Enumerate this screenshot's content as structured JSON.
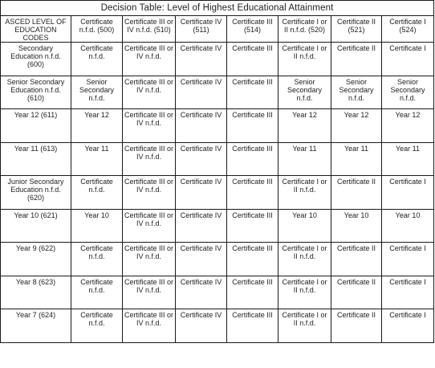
{
  "title": "Decision Table: Level of Highest Educational Attainment",
  "corner_header": "ASCED LEVEL OF EDUCATION CODES",
  "columns": [
    "Certificate n.f.d. (500)",
    "Certificate III or IV n.f.d. (510)",
    "Certificate IV (511)",
    "Certificate III (514)",
    "Certificate I or II n.f.d. (520)",
    "Certificate II (521)",
    "Certificate I (524)"
  ],
  "rows": [
    {
      "label": "Secondary Education n.f.d. (600)",
      "cells": [
        "Certificate n.f.d.",
        "Certificate III or IV n.f.d.",
        "Certificate IV",
        "Certificate III",
        "Certificate I or II n.f.d.",
        "Certificate II",
        "Certificate I"
      ]
    },
    {
      "label": "Senior Secondary Education n.f.d. (610)",
      "cells": [
        "Senior Secondary n.f.d.",
        "Certificate III or IV n.f.d.",
        "Certificate IV",
        "Certificate III",
        "Senior Secondary n.f.d.",
        "Senior Secondary n.f.d.",
        "Senior Secondary n.f.d."
      ]
    },
    {
      "label": "Year 12 (611)",
      "cells": [
        "Year 12",
        "Certificate III or IV n.f.d.",
        "Certificate IV",
        "Certificate III",
        "Year 12",
        "Year 12",
        "Year 12"
      ]
    },
    {
      "label": "Year 11 (613)",
      "cells": [
        "Year 11",
        "Certificate III or IV n.f.d.",
        "Certificate IV",
        "Certificate III",
        "Year 11",
        "Year 11",
        "Year 11"
      ]
    },
    {
      "label": "Junior Secondary Education n.f.d. (620)",
      "cells": [
        "Certificate n.f.d.",
        "Certificate III or IV n.f.d.",
        "Certificate IV",
        "Certificate III",
        "Certificate I or II n.f.d.",
        "Certificate II",
        "Certificate I"
      ]
    },
    {
      "label": "Year 10 (621)",
      "cells": [
        "Year 10",
        "Certificate III or IV n.f.d.",
        "Certificate IV",
        "Certificate III",
        "Year 10",
        "Year 10",
        "Year 10"
      ]
    },
    {
      "label": "Year 9 (622)",
      "cells": [
        "Certificate n.f.d.",
        "Certificate III or IV n.f.d.",
        "Certificate IV",
        "Certificate III",
        "Certificate I or II n.f.d.",
        "Certificate II",
        "Certificate I"
      ]
    },
    {
      "label": "Year 8 (623)",
      "cells": [
        "Certificate n.f.d.",
        "Certificate III or IV n.f.d.",
        "Certificate IV",
        "Certificate III",
        "Certificate I or II n.f.d.",
        "Certificate II",
        "Certificate I"
      ]
    },
    {
      "label": "Year 7 (624)",
      "cells": [
        "Certificate n.f.d.",
        "Certificate III or IV n.f.d.",
        "Certificate IV",
        "Certificate III",
        "Certificate I or II n.f.d.",
        "Certificate II",
        "Certificate I"
      ]
    }
  ]
}
